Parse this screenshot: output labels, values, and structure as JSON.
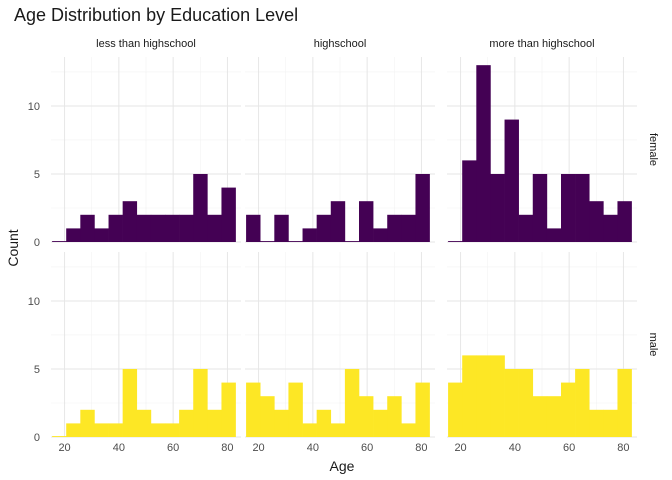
{
  "chart_data": {
    "type": "histogram",
    "title": "Age Distribution by Education Level",
    "xlabel": "Age",
    "ylabel": "Count",
    "xlim": [
      15,
      85
    ],
    "ylim": [
      0,
      13.6
    ],
    "x_ticks": [
      20,
      40,
      60,
      80
    ],
    "y_ticks": [
      0,
      5,
      10
    ],
    "bin_edges": [
      15.4,
      20.6,
      25.8,
      31.0,
      36.2,
      41.4,
      46.6,
      51.8,
      57.0,
      62.2,
      67.4,
      72.6,
      77.8,
      83.0
    ],
    "columns": [
      "less than highschool",
      "highschool",
      "more than highschool"
    ],
    "rows": [
      "female",
      "male"
    ],
    "row_colors": {
      "female": "#440154",
      "male": "#FDE725"
    },
    "grid": true,
    "panels": [
      {
        "column": "less than highschool",
        "row": "female",
        "counts": [
          0,
          1,
          2,
          1,
          2,
          3,
          2,
          2,
          2,
          2,
          5,
          2,
          4
        ]
      },
      {
        "column": "highschool",
        "row": "female",
        "counts": [
          2,
          0,
          2,
          0,
          1,
          2,
          3,
          0,
          3,
          1,
          2,
          2,
          5
        ]
      },
      {
        "column": "more than highschool",
        "row": "female",
        "counts": [
          0,
          6,
          13,
          5,
          9,
          2,
          5,
          1,
          5,
          5,
          3,
          2,
          3
        ]
      },
      {
        "column": "less than highschool",
        "row": "male",
        "counts": [
          0,
          1,
          2,
          1,
          1,
          5,
          2,
          1,
          1,
          2,
          5,
          2,
          4
        ]
      },
      {
        "column": "highschool",
        "row": "male",
        "counts": [
          4,
          3,
          2,
          4,
          1,
          2,
          1,
          5,
          3,
          2,
          3,
          1,
          4
        ]
      },
      {
        "column": "more than highschool",
        "row": "male",
        "counts": [
          4,
          6,
          6,
          6,
          5,
          5,
          3,
          3,
          4,
          5,
          2,
          2,
          5
        ]
      }
    ]
  }
}
